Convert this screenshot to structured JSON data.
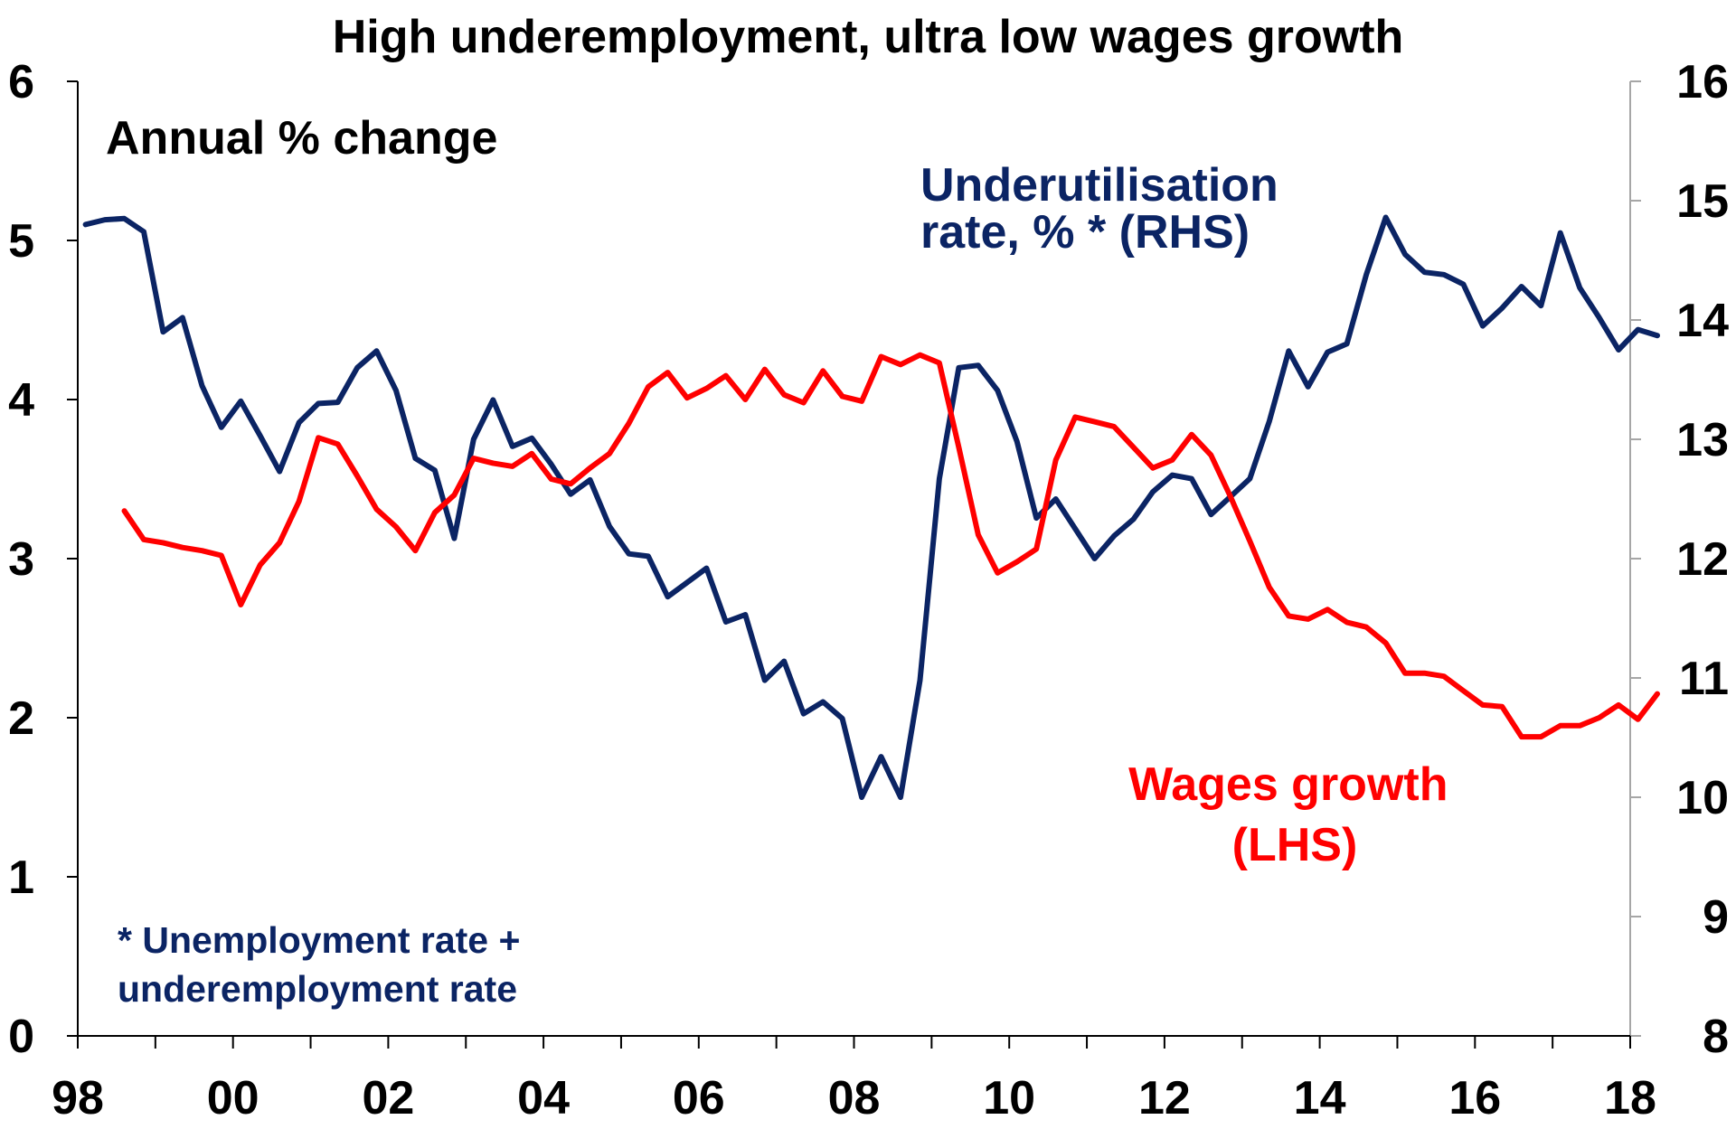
{
  "chart_data": {
    "type": "line",
    "title": "High underemployment, ultra low wages growth",
    "subtitle": "Annual % change",
    "footnote": [
      "* Unemployment rate +",
      "underemployment rate"
    ],
    "colors": {
      "underutilisation": "#0b2464",
      "wages": "#ff0000",
      "axis": "#000000"
    },
    "x_ticks": [
      1998,
      2000,
      2002,
      2004,
      2006,
      2008,
      2010,
      2012,
      2014,
      2016,
      2018
    ],
    "x_tick_labels": [
      "98",
      "00",
      "02",
      "04",
      "06",
      "08",
      "10",
      "12",
      "14",
      "16",
      "18"
    ],
    "xlim": [
      1998,
      2018
    ],
    "y_left": {
      "lim": [
        0,
        6
      ],
      "ticks": [
        0,
        1,
        2,
        3,
        4,
        5,
        6
      ],
      "tick_labels": [
        "0",
        "1",
        "2",
        "3",
        "4",
        "5",
        "6"
      ]
    },
    "y_right": {
      "lim": [
        8,
        16
      ],
      "ticks": [
        8,
        9,
        10,
        11,
        12,
        13,
        14,
        15,
        16
      ],
      "tick_labels": [
        "8",
        "9",
        "10",
        "11",
        "12",
        "13",
        "14",
        "15",
        "16"
      ]
    },
    "series": [
      {
        "name": "Underutilisation rate, % * (RHS)",
        "label_lines": [
          "Underutilisation",
          "rate, % * (RHS)"
        ],
        "axis": "right",
        "color": "#0b2464",
        "x": [
          1998.1,
          1998.35,
          1998.6,
          1998.85,
          1999.1,
          1999.35,
          1999.6,
          1999.85,
          2000.1,
          2000.35,
          2000.6,
          2000.85,
          2001.1,
          2001.35,
          2001.6,
          2001.85,
          2002.1,
          2002.35,
          2002.6,
          2002.85,
          2003.1,
          2003.35,
          2003.6,
          2003.85,
          2004.1,
          2004.35,
          2004.6,
          2004.85,
          2005.1,
          2005.35,
          2005.6,
          2005.85,
          2006.1,
          2006.35,
          2006.6,
          2006.85,
          2007.1,
          2007.35,
          2007.6,
          2007.85,
          2008.1,
          2008.35,
          2008.6,
          2008.85,
          2009.1,
          2009.35,
          2009.6,
          2009.85,
          2010.1,
          2010.35,
          2010.6,
          2010.85,
          2011.1,
          2011.35,
          2011.6,
          2011.85,
          2012.1,
          2012.35,
          2012.6,
          2012.85,
          2013.1,
          2013.35,
          2013.6,
          2013.85,
          2014.1,
          2014.35,
          2014.6,
          2014.85,
          2015.1,
          2015.35,
          2015.6,
          2015.85,
          2016.1,
          2016.35,
          2016.6,
          2016.85,
          2017.1,
          2017.35,
          2017.6,
          2017.85,
          2018.1,
          2018.35
        ],
        "values": [
          14.8,
          14.84,
          14.85,
          14.74,
          13.9,
          14.02,
          13.45,
          13.1,
          13.32,
          13.03,
          12.73,
          13.14,
          13.3,
          13.31,
          13.6,
          13.74,
          13.41,
          12.84,
          12.74,
          12.17,
          13.0,
          13.33,
          12.94,
          13.01,
          12.79,
          12.54,
          12.66,
          12.27,
          12.04,
          12.02,
          11.68,
          11.8,
          11.92,
          11.47,
          11.53,
          10.98,
          11.14,
          10.7,
          10.8,
          10.66,
          10.0,
          10.34,
          10.0,
          10.98,
          12.67,
          13.6,
          13.62,
          13.41,
          12.98,
          12.34,
          12.5,
          12.25,
          12.0,
          12.19,
          12.33,
          12.56,
          12.7,
          12.67,
          12.37,
          12.52,
          12.67,
          13.15,
          13.74,
          13.44,
          13.73,
          13.8,
          14.38,
          14.86,
          14.55,
          14.4,
          14.38,
          14.3,
          13.95,
          14.1,
          14.28,
          14.12,
          14.73,
          14.27,
          14.02,
          13.75,
          13.92,
          13.87
        ]
      },
      {
        "name": "Wages growth (LHS)",
        "label_lines": [
          "Wages growth",
          "(LHS)"
        ],
        "axis": "left",
        "color": "#ff0000",
        "x": [
          1998.6,
          1998.85,
          1999.1,
          1999.35,
          1999.6,
          1999.85,
          2000.1,
          2000.35,
          2000.6,
          2000.85,
          2001.1,
          2001.35,
          2001.6,
          2001.85,
          2002.1,
          2002.35,
          2002.6,
          2002.85,
          2003.1,
          2003.35,
          2003.6,
          2003.85,
          2004.1,
          2004.35,
          2004.6,
          2004.85,
          2005.1,
          2005.35,
          2005.6,
          2005.85,
          2006.1,
          2006.35,
          2006.6,
          2006.85,
          2007.1,
          2007.35,
          2007.6,
          2007.85,
          2008.1,
          2008.35,
          2008.6,
          2008.85,
          2009.1,
          2009.35,
          2009.6,
          2009.85,
          2010.1,
          2010.35,
          2010.6,
          2010.85,
          2011.1,
          2011.35,
          2011.6,
          2011.85,
          2012.1,
          2012.35,
          2012.6,
          2012.85,
          2013.1,
          2013.35,
          2013.6,
          2013.85,
          2014.1,
          2014.35,
          2014.6,
          2014.85,
          2015.1,
          2015.35,
          2015.6,
          2015.85,
          2016.1,
          2016.35,
          2016.6,
          2016.85,
          2017.1,
          2017.35,
          2017.6,
          2017.85,
          2018.1,
          2018.35
        ],
        "values": [
          3.3,
          3.12,
          3.1,
          3.07,
          3.05,
          3.02,
          2.71,
          2.96,
          3.1,
          3.36,
          3.76,
          3.72,
          3.52,
          3.31,
          3.2,
          3.05,
          3.29,
          3.4,
          3.63,
          3.6,
          3.58,
          3.66,
          3.5,
          3.47,
          3.57,
          3.66,
          3.85,
          4.08,
          4.17,
          4.01,
          4.07,
          4.15,
          4.0,
          4.19,
          4.03,
          3.98,
          4.18,
          4.02,
          3.99,
          4.27,
          4.22,
          4.28,
          4.23,
          3.7,
          3.15,
          2.91,
          2.98,
          3.06,
          3.62,
          3.89,
          3.86,
          3.83,
          3.7,
          3.57,
          3.62,
          3.78,
          3.65,
          3.39,
          3.11,
          2.82,
          2.64,
          2.62,
          2.68,
          2.6,
          2.57,
          2.47,
          2.28,
          2.28,
          2.26,
          2.17,
          2.08,
          2.07,
          1.88,
          1.88,
          1.95,
          1.95,
          2.0,
          2.08,
          1.99,
          2.15
        ]
      }
    ],
    "grid": false,
    "legend": "inline labels"
  }
}
